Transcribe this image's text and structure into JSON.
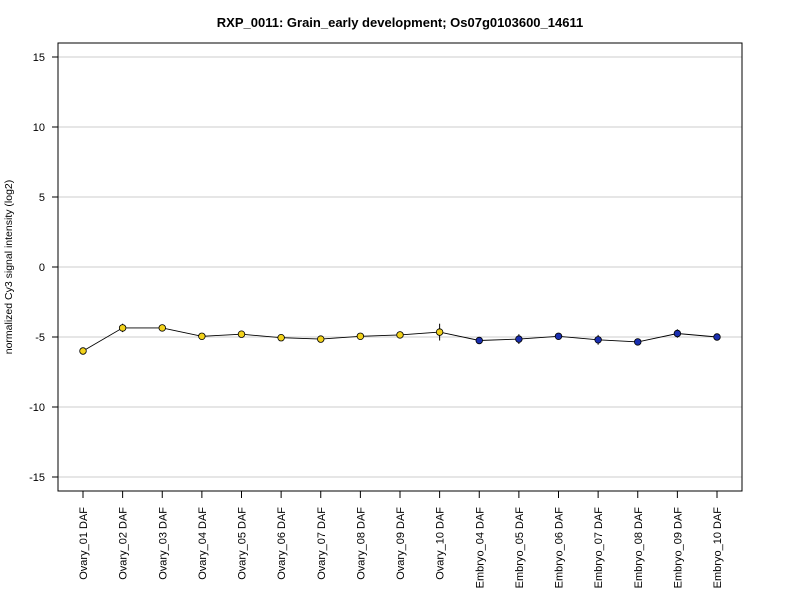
{
  "chart_data": {
    "type": "line",
    "title": "RXP_0011: Grain_early development; Os07g0103600_14611",
    "xlabel": "",
    "ylabel": "normalized Cy3 signal intensity (log2)",
    "ylim": [
      -16,
      16
    ],
    "yticks": [
      15,
      10,
      5,
      0,
      -5,
      -10,
      -15
    ],
    "ytick_labels": [
      "15",
      "10",
      "5",
      "0",
      "-5",
      "-10",
      "-15"
    ],
    "grid": "horizontal",
    "categories": [
      "Ovary_01 DAF",
      "Ovary_02 DAF",
      "Ovary_03 DAF",
      "Ovary_04 DAF",
      "Ovary_05 DAF",
      "Ovary_06 DAF",
      "Ovary_07 DAF",
      "Ovary_08 DAF",
      "Ovary_09 DAF",
      "Ovary_10 DAF",
      "Embryo_04 DAF",
      "Embryo_05 DAF",
      "Embryo_06 DAF",
      "Embryo_07 DAF",
      "Embryo_08 DAF",
      "Embryo_09 DAF",
      "Embryo_10 DAF"
    ],
    "values": [
      -6.0,
      -4.35,
      -4.35,
      -4.95,
      -4.8,
      -5.05,
      -5.15,
      -4.95,
      -4.85,
      -4.65,
      -5.25,
      -5.15,
      -4.95,
      -5.2,
      -5.35,
      -4.75,
      -5.0
    ],
    "errors": [
      0.1,
      0.3,
      0.15,
      0.15,
      0.2,
      0.1,
      0.2,
      0.15,
      0.25,
      0.6,
      0.25,
      0.35,
      0.2,
      0.35,
      0.2,
      0.3,
      0.1
    ],
    "point_colors": [
      "#f2d21b",
      "#f2d21b",
      "#f2d21b",
      "#f2d21b",
      "#f2d21b",
      "#f2d21b",
      "#f2d21b",
      "#f2d21b",
      "#f2d21b",
      "#f2d21b",
      "#1a2fb0",
      "#1a2fb0",
      "#1a2fb0",
      "#1a2fb0",
      "#1a2fb0",
      "#1a2fb0",
      "#1a2fb0"
    ],
    "line_color": "#000000",
    "grid_color": "#cccccc"
  }
}
